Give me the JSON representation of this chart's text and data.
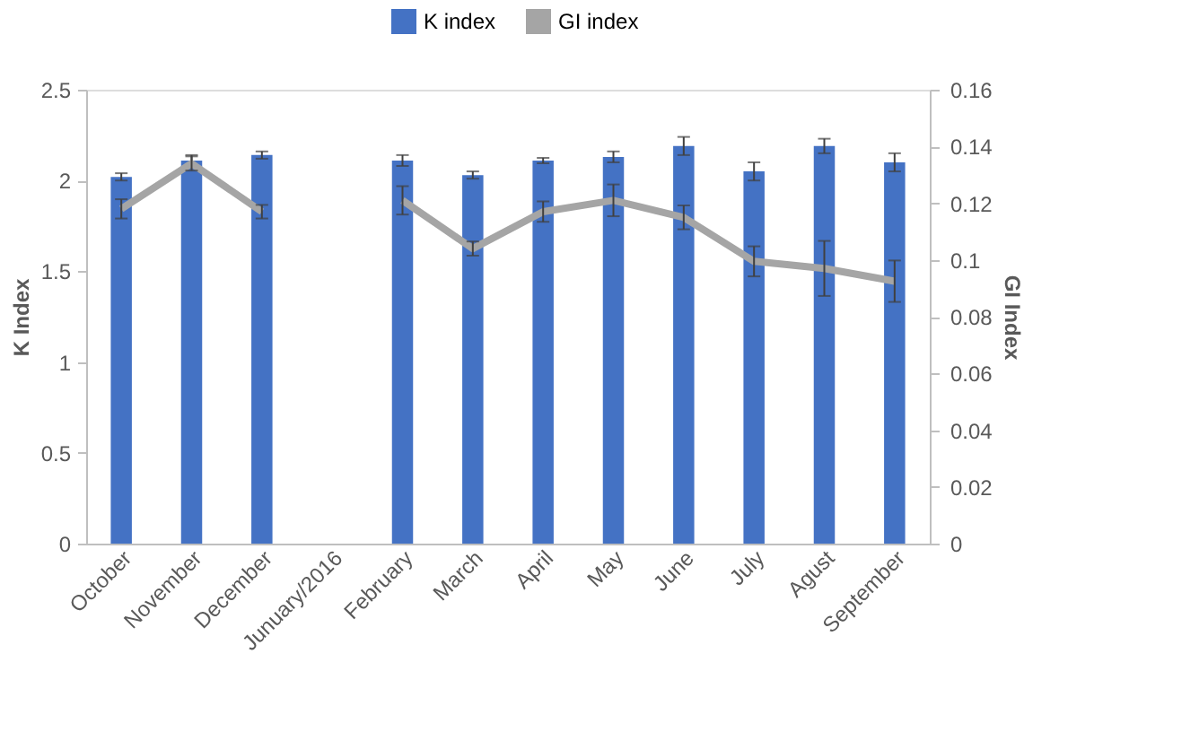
{
  "chart_data": {
    "type": "bar",
    "categories": [
      "October",
      "November",
      "December",
      "Junuary/2016",
      "February",
      "March",
      "April",
      "May",
      "June",
      "July",
      "Agust",
      "September"
    ],
    "ylabel": "K Index",
    "y2label": "GI Index",
    "ylim": [
      0,
      2.5
    ],
    "yticks": [
      0,
      0.5,
      1,
      1.5,
      2,
      2.5
    ],
    "y2lim": [
      0,
      0.16
    ],
    "y2ticks": [
      0,
      0.02,
      0.04,
      0.06,
      0.08,
      0.1,
      0.12,
      0.14,
      0.16
    ],
    "legend": "top",
    "grid": false,
    "series": [
      {
        "name": "K index",
        "color": "#4472c4",
        "values": [
          2.02,
          2.11,
          2.14,
          null,
          2.11,
          2.03,
          2.11,
          2.13,
          2.19,
          2.05,
          2.19,
          2.1
        ],
        "errors": [
          0.02,
          0.03,
          0.02,
          null,
          0.03,
          0.02,
          0.015,
          0.03,
          0.05,
          0.05,
          0.04,
          0.05
        ]
      },
      {
        "name": "GI index",
        "color": "#a5a5a5",
        "type": "line",
        "axis": "y2",
        "values": [
          0.118,
          0.134,
          0.117,
          null,
          0.121,
          0.104,
          0.117,
          0.121,
          0.115,
          0.0995,
          0.097,
          0.0925
        ],
        "errors": [
          0.0034,
          0.0025,
          0.0024,
          null,
          0.005,
          0.0025,
          0.0036,
          0.0056,
          0.0042,
          0.0053,
          0.0097,
          0.0073
        ]
      }
    ]
  }
}
